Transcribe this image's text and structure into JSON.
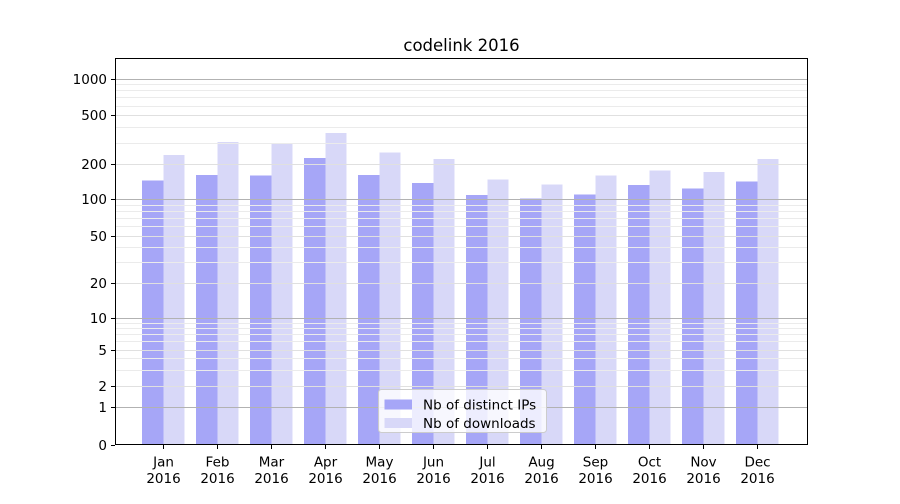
{
  "figure": {
    "background": "#ffffff"
  },
  "chart_data": {
    "type": "bar",
    "title": "codelink 2016",
    "categories": [
      "Jan 2016",
      "Feb 2016",
      "Mar 2016",
      "Apr 2016",
      "May 2016",
      "Jun 2016",
      "Jul 2016",
      "Aug 2016",
      "Sep 2016",
      "Oct 2016",
      "Nov 2016",
      "Dec 2016"
    ],
    "series": [
      {
        "name": "Nb of distinct IPs",
        "color": "#a6a6f7",
        "values": [
          144,
          161,
          160,
          224,
          162,
          138,
          108,
          101,
          110,
          132,
          123,
          142
        ]
      },
      {
        "name": "Nb of downloads",
        "color": "#d8d8f8",
        "values": [
          237,
          302,
          296,
          357,
          250,
          220,
          148,
          134,
          160,
          177,
          171,
          221
        ]
      }
    ],
    "xlabel": "",
    "ylabel": "",
    "yticks": [
      0,
      1,
      2,
      5,
      10,
      20,
      50,
      100,
      200,
      500,
      1000
    ],
    "ytick_labels": [
      "0",
      "1",
      "2",
      "5",
      "10",
      "20",
      "50",
      "100",
      "200",
      "500",
      "1000"
    ],
    "ylim": [
      0,
      1480
    ],
    "yscale": "symlog",
    "grid": "on",
    "gridline_colors": {
      "major": "#b2b2b2",
      "labeled_minor": "#e0e0e0",
      "minor": "#ebebeb"
    },
    "legend": {
      "position": "lower center",
      "entries": [
        "Nb of distinct IPs",
        "Nb of downloads"
      ]
    }
  }
}
